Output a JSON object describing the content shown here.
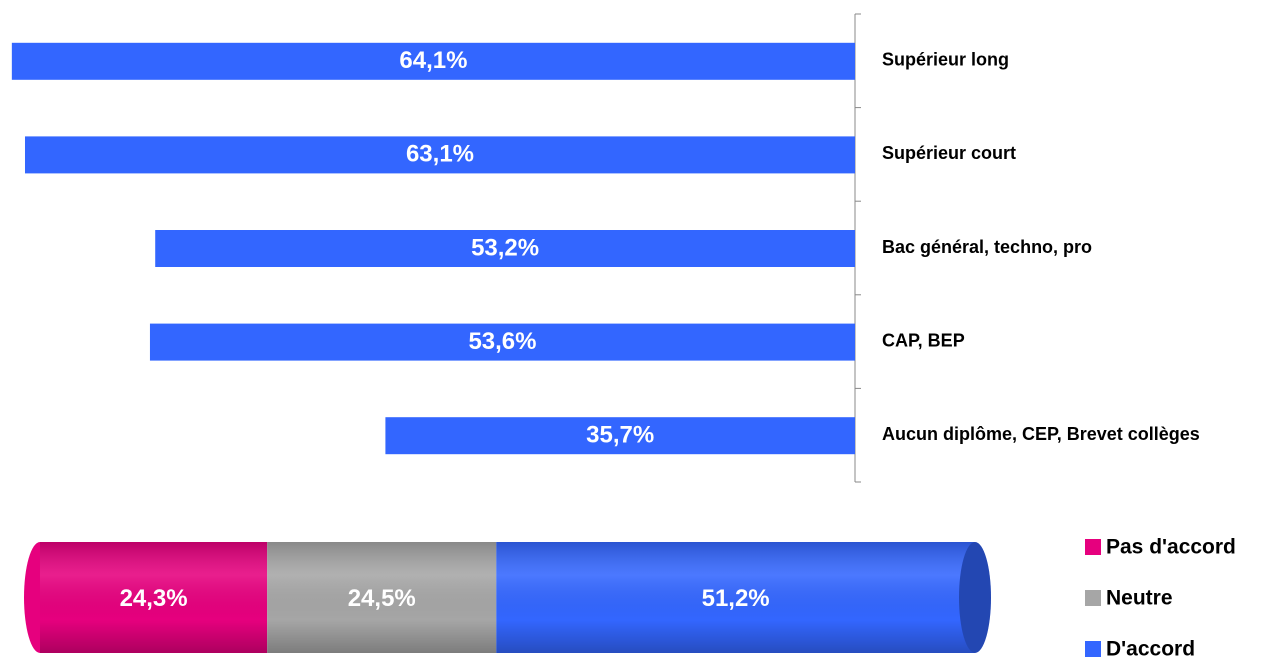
{
  "chart_data": [
    {
      "type": "bar",
      "orientation": "horizontal",
      "direction": "right-to-left",
      "categories": [
        "Supérieur long",
        "Supérieur court",
        "Bac général, techno, pro",
        "CAP, BEP",
        "Aucun diplôme, CEP, Brevet collèges"
      ],
      "values": [
        64.1,
        63.1,
        53.2,
        53.6,
        35.7
      ],
      "value_labels": [
        "64,1%",
        "63,1%",
        "53,2%",
        "53,6%",
        "35,7%"
      ],
      "color": "#3366ff",
      "xlim": [
        0,
        65
      ]
    },
    {
      "type": "stacked-bar",
      "orientation": "horizontal",
      "style": "cylinder",
      "series": [
        {
          "name": "Pas d'accord",
          "color": "#e6007e",
          "values": [
            24.3
          ],
          "value_labels": [
            "24,3%"
          ]
        },
        {
          "name": "Neutre",
          "color": "#a6a6a6",
          "values": [
            24.5
          ],
          "value_labels": [
            "24,5%"
          ]
        },
        {
          "name": "D'accord",
          "color": "#3366ff",
          "values": [
            51.2
          ],
          "value_labels": [
            "51,2%"
          ]
        }
      ],
      "xlim": [
        0,
        100
      ],
      "legend": "right"
    }
  ]
}
